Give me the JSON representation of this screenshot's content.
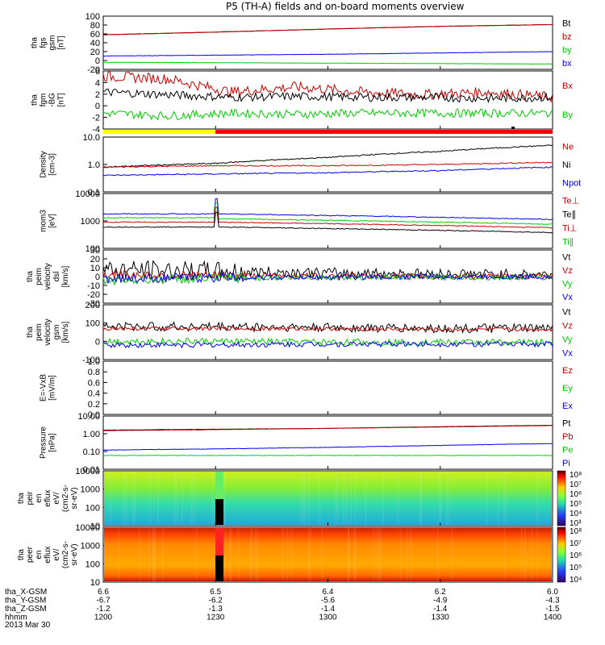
{
  "title": "P5 (TH-A) fields and on-board moments overview",
  "colors": {
    "black": "#000000",
    "red": "#cc0000",
    "green": "#00cc00",
    "blue": "#0000ee",
    "yellow": "#ffff00",
    "brightred": "#ff0000"
  },
  "x_axis": {
    "tick_time": [
      "1200",
      "1230",
      "1300",
      "1330",
      "1400"
    ],
    "rows": [
      {
        "label": "tha_X-GSM",
        "values": [
          "6.6",
          "6.5",
          "6.4",
          "6.2",
          "6.0"
        ]
      },
      {
        "label": "tha_Y-GSM",
        "values": [
          "-6.7",
          "-6.2",
          "-5.6",
          "-4.9",
          "-4.3"
        ]
      },
      {
        "label": "tha_Z-GSM",
        "values": [
          "-1.2",
          "-1.3",
          "-1.4",
          "-1.4",
          "-1.5"
        ]
      },
      {
        "label": "hhmm",
        "values": [
          "1200",
          "1230",
          "1300",
          "1330",
          "1400"
        ]
      }
    ],
    "date": "2013 Mar 30"
  },
  "panels": [
    {
      "ylabel": [
        "tha",
        "fgs",
        "gsm",
        "[nT]"
      ],
      "yticks": [
        "100",
        "80",
        "60",
        "40",
        "20",
        "0",
        "-20"
      ],
      "ylim": [
        -20,
        100
      ],
      "legend": [
        {
          "t": "Bt",
          "c": "black"
        },
        {
          "t": "bz",
          "c": "red"
        },
        {
          "t": "by",
          "c": "green"
        },
        {
          "t": "bx",
          "c": "blue"
        }
      ]
    },
    {
      "ylabel": [
        "tha",
        "fgm",
        "-BG",
        "[nT]"
      ],
      "yticks": [
        "6",
        "4",
        "2",
        "0",
        "-2",
        "-4"
      ],
      "ylim": [
        -5,
        6
      ],
      "legend": [
        {
          "t": "Bx",
          "c": "red"
        },
        {
          "t": "By",
          "c": "green"
        }
      ]
    },
    {
      "ylabel": [
        "Density",
        "[cm-3]"
      ],
      "yticks": [
        "10.0",
        "1.0",
        "0.1"
      ],
      "log": true,
      "ylim": [
        0.1,
        10
      ],
      "legend": [
        {
          "t": "Ne",
          "c": "red"
        },
        {
          "t": "Ni",
          "c": "black"
        },
        {
          "t": "Npot",
          "c": "blue"
        }
      ]
    },
    {
      "ylabel": [
        "mom3",
        "[eV]"
      ],
      "yticks": [
        "10000",
        "1000",
        "100"
      ],
      "log": true,
      "ylim": [
        100,
        10000
      ],
      "legend": [
        {
          "t": "Te⊥",
          "c": "red"
        },
        {
          "t": "Te∥",
          "c": "black"
        },
        {
          "t": "Ti⊥",
          "c": "red"
        },
        {
          "t": "Ti∥",
          "c": "green"
        }
      ]
    },
    {
      "ylabel": [
        "tha",
        "peim",
        "velocity",
        "dsl",
        "[km/s]"
      ],
      "yticks": [
        "30",
        "20",
        "10",
        "0",
        "-10",
        "-20",
        "-30"
      ],
      "ylim": [
        -30,
        30
      ],
      "legend": [
        {
          "t": "Vt",
          "c": "black"
        },
        {
          "t": "Vz",
          "c": "red"
        },
        {
          "t": "Vy",
          "c": "green"
        },
        {
          "t": "Vx",
          "c": "blue"
        }
      ]
    },
    {
      "ylabel": [
        "tha",
        "peim",
        "velocity",
        "gsm",
        "[km/s]"
      ],
      "yticks": [
        "200",
        "100",
        "0",
        "-100"
      ],
      "ylim": [
        -100,
        200
      ],
      "legend": [
        {
          "t": "Vt",
          "c": "black"
        },
        {
          "t": "Vz",
          "c": "red"
        },
        {
          "t": "Vy",
          "c": "green"
        },
        {
          "t": "Vx",
          "c": "blue"
        }
      ]
    },
    {
      "ylabel": [
        "E=-VxB",
        "[mV/m]"
      ],
      "yticks": [
        "1.0",
        "0.8",
        "0.6",
        "0.4",
        "0.2",
        "0.0"
      ],
      "ylim": [
        0,
        1
      ],
      "legend": [
        {
          "t": "Ez",
          "c": "red"
        },
        {
          "t": "Ey",
          "c": "green"
        },
        {
          "t": "Ex",
          "c": "blue"
        }
      ]
    },
    {
      "ylabel": [
        "Pressure",
        "[nPa]"
      ],
      "yticks": [
        "10.00",
        "1.00",
        "0.10",
        "0.01"
      ],
      "log": true,
      "ylim": [
        0.01,
        10
      ],
      "legend": [
        {
          "t": "Pt",
          "c": "black"
        },
        {
          "t": "Pb",
          "c": "red"
        },
        {
          "t": "Pe",
          "c": "green"
        },
        {
          "t": "Pi",
          "c": "blue"
        }
      ]
    },
    {
      "ylabel": [
        "tha",
        "peir",
        "en",
        "eflux",
        "eV/",
        "(cm2-s-",
        "sr-eV)"
      ],
      "yticks": [
        "10000",
        "1000",
        "100",
        "10"
      ],
      "log": true,
      "colorbar": [
        "10⁸",
        "10⁷",
        "10⁶",
        "10⁵",
        "10⁴",
        "10³"
      ]
    },
    {
      "ylabel": [
        "tha",
        "peer",
        "en",
        "eflux",
        "eV/",
        "(cm2-s-",
        "sr-eV)"
      ],
      "yticks": [
        "10000",
        "1000",
        "100",
        "10"
      ],
      "log": true,
      "colorbar": [
        "10⁸",
        "10⁷",
        "10⁶",
        "10⁵",
        "10⁴"
      ]
    }
  ],
  "chart_data": [
    {
      "type": "line",
      "title": "tha fgs gsm [nT]",
      "ylim": [
        -20,
        100
      ],
      "x": [
        "1200",
        "1230",
        "1300",
        "1330",
        "1400"
      ],
      "series": [
        {
          "name": "Bt",
          "values": [
            58,
            64,
            71,
            77,
            81
          ]
        },
        {
          "name": "bz",
          "values": [
            58,
            64,
            71,
            77,
            81
          ]
        },
        {
          "name": "by",
          "values": [
            10,
            12,
            14,
            17,
            20
          ]
        },
        {
          "name": "bx",
          "values": [
            -4,
            -5,
            -6,
            -7,
            -8
          ]
        }
      ]
    },
    {
      "type": "line",
      "title": "tha fgm -BG [nT]",
      "ylim": [
        -5,
        6
      ],
      "x": [
        "1200",
        "1230",
        "1300",
        "1330",
        "1400"
      ],
      "series": [
        {
          "name": "Bx",
          "values": [
            4,
            3,
            2,
            2,
            1
          ]
        },
        {
          "name": "By",
          "values": [
            -2,
            -2.5,
            -2,
            -2,
            -2
          ]
        }
      ]
    },
    {
      "type": "line",
      "title": "Density [cm-3]",
      "ylim": [
        0.1,
        10
      ],
      "yscale": "log",
      "x": [
        "1200",
        "1230",
        "1300",
        "1330",
        "1400"
      ],
      "series": [
        {
          "name": "Ne",
          "values": [
            0.8,
            0.9,
            0.9,
            1.0,
            1.2
          ]
        },
        {
          "name": "Ni",
          "values": [
            0.8,
            1.1,
            1.8,
            3,
            5
          ]
        },
        {
          "name": "Npot",
          "values": [
            0.4,
            0.45,
            0.5,
            0.6,
            0.8
          ]
        }
      ]
    },
    {
      "type": "line",
      "title": "mom3 [eV]",
      "ylim": [
        100,
        10000
      ],
      "yscale": "log",
      "x": [
        "1200",
        "1230",
        "1300",
        "1330",
        "1400"
      ],
      "series": [
        {
          "name": "Te⊥",
          "values": [
            1800,
            1800,
            1500,
            1300,
            1200
          ]
        },
        {
          "name": "Te∥",
          "values": [
            700,
            600,
            500,
            400,
            300
          ]
        },
        {
          "name": "Ti⊥",
          "values": [
            1000,
            900,
            700,
            550,
            450
          ]
        },
        {
          "name": "Ti∥",
          "values": [
            1300,
            1200,
            1000,
            900,
            800
          ]
        }
      ]
    },
    {
      "type": "line",
      "title": "tha peim velocity dsl [km/s]",
      "ylim": [
        -30,
        30
      ],
      "x": [
        "1200",
        "1230",
        "1300",
        "1330",
        "1400"
      ],
      "series": [
        {
          "name": "Vt",
          "values": [
            8,
            6,
            4,
            3,
            2
          ]
        },
        {
          "name": "Vz",
          "values": [
            2,
            1,
            1,
            0,
            0
          ]
        },
        {
          "name": "Vy",
          "values": [
            -4,
            -2,
            -1,
            -1,
            -1
          ]
        },
        {
          "name": "Vx",
          "values": [
            -2,
            -1,
            -1,
            0,
            0
          ]
        }
      ]
    },
    {
      "type": "line",
      "title": "tha peim velocity gsm [km/s]",
      "ylim": [
        -100,
        200
      ],
      "x": [
        "1200",
        "1230",
        "1300",
        "1330",
        "1400"
      ],
      "series": [
        {
          "name": "Vt",
          "values": [
            80,
            80,
            75,
            70,
            70
          ]
        },
        {
          "name": "Vz",
          "values": [
            70,
            70,
            68,
            65,
            65
          ]
        },
        {
          "name": "Vy",
          "values": [
            0,
            0,
            -5,
            -5,
            -5
          ]
        },
        {
          "name": "Vx",
          "values": [
            -20,
            -20,
            -15,
            -15,
            -15
          ]
        }
      ]
    },
    {
      "type": "line",
      "title": "E=-VxB [mV/m]",
      "ylim": [
        0,
        1
      ],
      "x": [],
      "series": []
    },
    {
      "type": "line",
      "title": "Pressure [nPa]",
      "ylim": [
        0.01,
        10
      ],
      "yscale": "log",
      "x": [
        "1200",
        "1230",
        "1300",
        "1330",
        "1400"
      ],
      "series": [
        {
          "name": "Pt",
          "values": [
            1.6,
            1.8,
            2.0,
            2.5,
            3.0
          ]
        },
        {
          "name": "Pb",
          "values": [
            1.5,
            1.7,
            2.0,
            2.4,
            2.9
          ]
        },
        {
          "name": "Pe",
          "values": [
            0.12,
            0.14,
            0.17,
            0.22,
            0.28
          ]
        },
        {
          "name": "Pi",
          "values": [
            0.06,
            0.06,
            0.06,
            0.06,
            0.06
          ]
        }
      ]
    },
    {
      "type": "heatmap",
      "title": "tha peir en eflux",
      "ylim": [
        5,
        20000
      ],
      "yscale": "log"
    },
    {
      "type": "heatmap",
      "title": "tha peer en eflux",
      "ylim": [
        5,
        20000
      ],
      "yscale": "log"
    }
  ]
}
